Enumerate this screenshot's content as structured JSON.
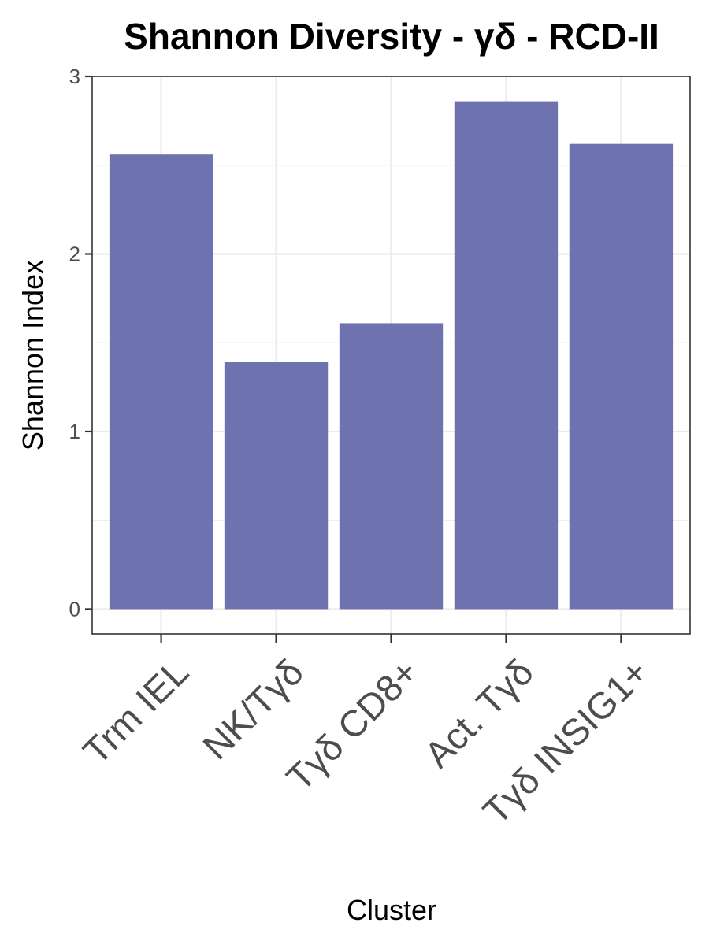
{
  "chart_data": {
    "type": "bar",
    "title": "Shannon Diversity - γδ - RCD-II",
    "xlabel": "Cluster",
    "ylabel": "Shannon Index",
    "categories": [
      "Trm IEL",
      "NK/Tγδ",
      "Tγδ CD8+",
      "Act. Tγδ",
      "Tγδ INSIG1+"
    ],
    "values": [
      2.56,
      1.39,
      1.61,
      2.86,
      2.62
    ],
    "ylim": [
      -0.14,
      3.0
    ],
    "yticks": [
      0,
      1,
      2,
      3
    ],
    "ytick_labels": [
      "0",
      "1",
      "2",
      "3"
    ],
    "grid": true,
    "bar_color": "#6e72ae",
    "grid_color": "#ebebeb",
    "panel_border_color": "#333333"
  }
}
